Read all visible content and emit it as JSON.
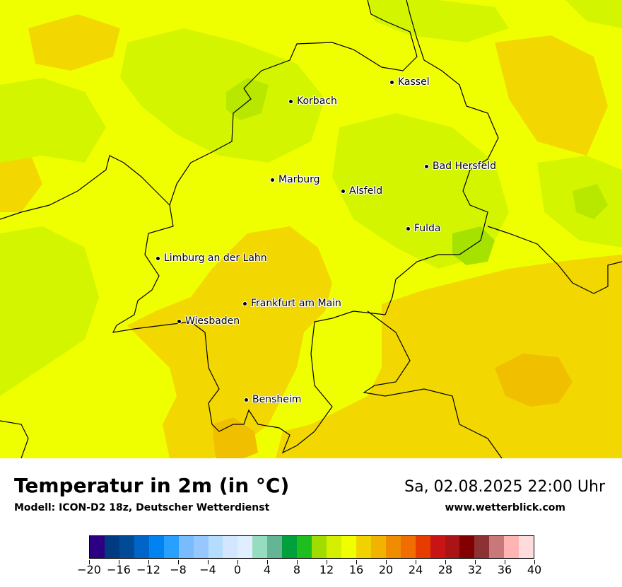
{
  "map": {
    "cities": [
      {
        "id": "kassel",
        "name": "Kassel"
      },
      {
        "id": "korbach",
        "name": "Korbach"
      },
      {
        "id": "bad-hersfeld",
        "name": "Bad Hersfeld"
      },
      {
        "id": "marburg",
        "name": "Marburg"
      },
      {
        "id": "alsfeld",
        "name": "Alsfeld"
      },
      {
        "id": "fulda",
        "name": "Fulda"
      },
      {
        "id": "limburg",
        "name": "Limburg an der Lahn"
      },
      {
        "id": "frankfurt",
        "name": "Frankfurt am Main"
      },
      {
        "id": "wiesbaden",
        "name": "Wiesbaden"
      },
      {
        "id": "bensheim",
        "name": "Bensheim"
      }
    ],
    "colors": {
      "base": "#f0ff00",
      "warm": "#f2d800",
      "warmer": "#f0c000",
      "cool": "#d4f500",
      "cooler": "#a6e200",
      "border": "#000000"
    }
  },
  "footer": {
    "title": "Temperatur in 2m (in °C)",
    "subtitle": "Modell: ICON-D2 18z, Deutscher Wetterdienst",
    "datetime": "Sa, 02.08.2025 22:00 Uhr",
    "website": "www.wetterblick.com"
  },
  "colorbar": {
    "colors": [
      "#2c0082",
      "#003a82",
      "#004a96",
      "#0064c8",
      "#0082f0",
      "#28a0ff",
      "#78bcff",
      "#96c8ff",
      "#b4dcff",
      "#d2e6ff",
      "#e0efff",
      "#96dcbe",
      "#64b496",
      "#00a03c",
      "#1ebe1e",
      "#a0dc00",
      "#d2f000",
      "#f0ff00",
      "#f0d200",
      "#f0b400",
      "#f08c00",
      "#f06e00",
      "#e63c00",
      "#c81414",
      "#aa1414",
      "#820000",
      "#8c3232",
      "#c87878",
      "#ffb4b4",
      "#ffdcdc"
    ],
    "ticks": [
      "−20",
      "−16",
      "−12",
      "−8",
      "−4",
      "0",
      "4",
      "8",
      "12",
      "16",
      "20",
      "24",
      "28",
      "32",
      "36",
      "40"
    ],
    "min": -20,
    "max": 40
  }
}
